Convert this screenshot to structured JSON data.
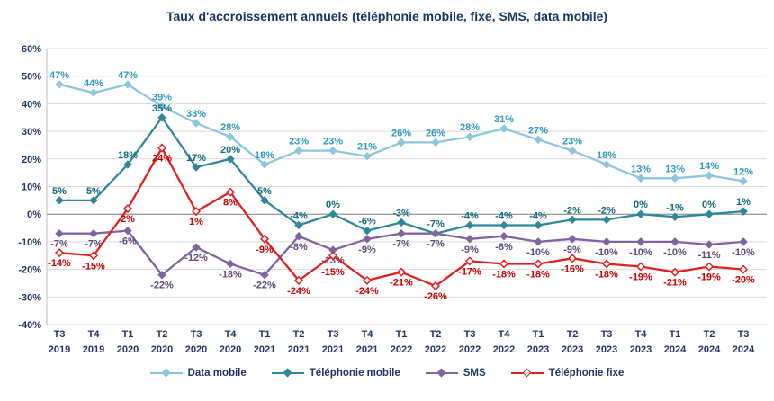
{
  "title": "Taux d'accroissement annuels (téléphonie mobile, fixe, SMS, data mobile)",
  "chart_data": {
    "type": "line",
    "title": "Taux d'accroissement annuels (téléphonie mobile, fixe, SMS, data mobile)",
    "xlabel": "",
    "ylabel": "",
    "ylim": [
      -40,
      60
    ],
    "grid": true,
    "legend_position": "bottom",
    "categories": [
      "T3 2019",
      "T4 2019",
      "T1 2020",
      "T2 2020",
      "T3 2020",
      "T4 2020",
      "T1 2021",
      "T2 2021",
      "T3 2021",
      "T4 2021",
      "T1 2022",
      "T2 2022",
      "T3 2022",
      "T4 2022",
      "T1 2023",
      "T2 2023",
      "T3 2023",
      "T4 2023",
      "T1 2024",
      "T2 2024",
      "T3 2024"
    ],
    "y_ticks": [
      {
        "v": 60,
        "label": "60%"
      },
      {
        "v": 50,
        "label": "50%"
      },
      {
        "v": 40,
        "label": "40%"
      },
      {
        "v": 30,
        "label": "30%"
      },
      {
        "v": 20,
        "label": "20%"
      },
      {
        "v": 10,
        "label": "10%"
      },
      {
        "v": 0,
        "label": "0%"
      },
      {
        "v": -10,
        "label": "-10%"
      },
      {
        "v": -20,
        "label": "-20%"
      },
      {
        "v": -30,
        "label": "-30%"
      },
      {
        "v": -40,
        "label": "-40%"
      }
    ],
    "series": [
      {
        "name": "Data mobile",
        "color": "#8CC6DE",
        "label_color": "#2E9BC0",
        "marker_fill": "#8CC6DE",
        "label_pos": "above",
        "values": [
          47,
          44,
          47,
          39,
          33,
          28,
          18,
          23,
          23,
          21,
          26,
          26,
          28,
          31,
          27,
          23,
          18,
          13,
          13,
          14,
          12
        ]
      },
      {
        "name": "Téléphonie mobile",
        "color": "#2E8899",
        "label_color": "#106D7E",
        "marker_fill": "#2E8899",
        "label_pos": "above",
        "values": [
          5,
          5,
          18,
          35,
          17,
          20,
          5,
          -4,
          0,
          -6,
          -3,
          -7,
          -4,
          -4,
          -4,
          -2,
          -2,
          0,
          -1,
          0,
          1
        ]
      },
      {
        "name": "SMS",
        "color": "#8064A2",
        "label_color": "#604A7B",
        "marker_fill": "#8064A2",
        "label_pos": "below",
        "values": [
          -7,
          -7,
          -6,
          -22,
          -12,
          -18,
          -22,
          -8,
          -13,
          -9,
          -7,
          -7,
          -9,
          -8,
          -10,
          -9,
          -10,
          -10,
          -10,
          -11,
          -10
        ]
      },
      {
        "name": "Téléphonie fixe",
        "color": "#E02020",
        "label_color": "#CC0000",
        "marker_fill": "#FFFFFF",
        "label_pos": "below",
        "values": [
          -14,
          -15,
          2,
          24,
          1,
          8,
          -9,
          -24,
          -15,
          -24,
          -21,
          -26,
          -17,
          -18,
          -18,
          -16,
          -18,
          -19,
          -21,
          -19,
          -20
        ]
      }
    ]
  }
}
